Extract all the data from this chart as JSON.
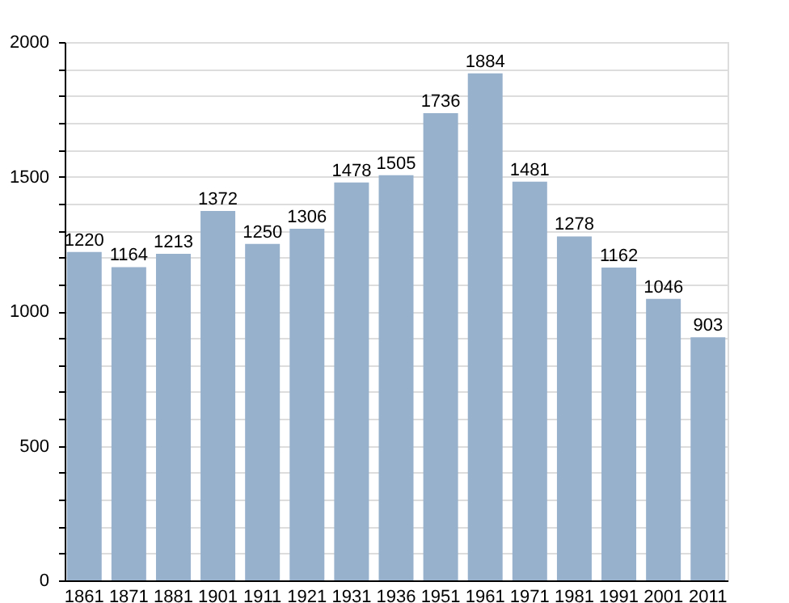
{
  "chart_data": {
    "type": "bar",
    "categories": [
      "1861",
      "1871",
      "1881",
      "1901",
      "1911",
      "1921",
      "1931",
      "1936",
      "1951",
      "1961",
      "1971",
      "1981",
      "1991",
      "2001",
      "2011"
    ],
    "values": [
      1220,
      1164,
      1213,
      1372,
      1250,
      1306,
      1478,
      1505,
      1736,
      1884,
      1481,
      1278,
      1162,
      1046,
      903
    ],
    "color": "#97b0cc",
    "ylim": [
      0,
      2000
    ],
    "yticks": [
      0,
      {
        "value": 100,
        "label": null
      },
      {
        "value": 200,
        "label": null
      },
      {
        "value": 300,
        "label": null
      },
      {
        "value": 400,
        "label": null
      },
      500,
      {
        "value": 600,
        "label": null
      },
      {
        "value": 700,
        "label": null
      },
      {
        "value": 800,
        "label": null
      },
      {
        "value": 900,
        "label": null
      },
      1000,
      {
        "value": 1100,
        "label": null
      },
      {
        "value": 1200,
        "label": null
      },
      {
        "value": 1300,
        "label": null
      },
      {
        "value": 1400,
        "label": null
      },
      1500,
      {
        "value": 1600,
        "label": null
      },
      {
        "value": 1700,
        "label": null
      },
      {
        "value": 1800,
        "label": null
      },
      {
        "value": 1900,
        "label": null
      },
      2000
    ],
    "data_labels": true,
    "grid": "y"
  }
}
